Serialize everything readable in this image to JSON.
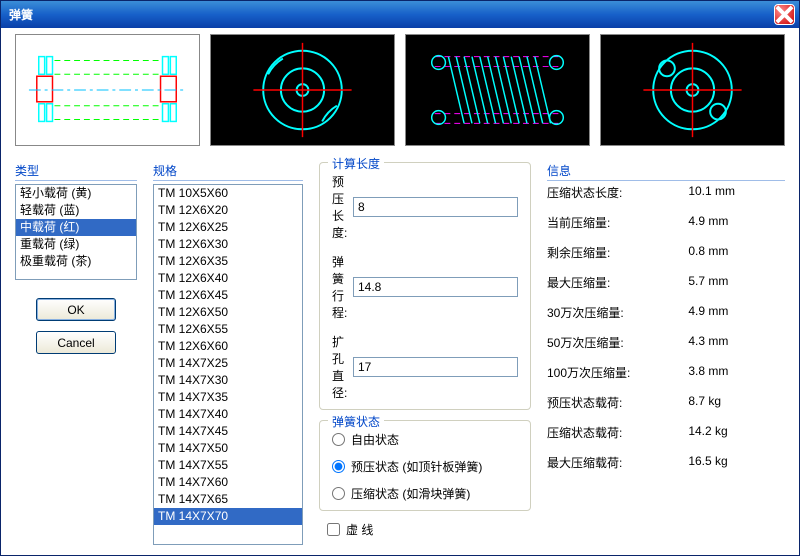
{
  "title": "弹簧",
  "previews": {
    "selected_index": 0,
    "colors": {
      "cyan": "#00ffff",
      "red": "#ff0000",
      "green_dash": "#00ff00",
      "magenta": "#ff00ff",
      "white": "#ffffff"
    }
  },
  "type_group": {
    "label": "类型",
    "items": [
      "轻小载荷 (黄)",
      "轻载荷 (蓝)",
      "中载荷 (红)",
      "重载荷 (绿)",
      "极重载荷 (茶)"
    ],
    "selected_index": 2
  },
  "spec_group": {
    "label": "规格",
    "items": [
      "TM 10X5X60",
      "TM 12X6X20",
      "TM 12X6X25",
      "TM 12X6X30",
      "TM 12X6X35",
      "TM 12X6X40",
      "TM 12X6X45",
      "TM 12X6X50",
      "TM 12X6X55",
      "TM 12X6X60",
      "TM 14X7X25",
      "TM 14X7X30",
      "TM 14X7X35",
      "TM 14X7X40",
      "TM 14X7X45",
      "TM 14X7X50",
      "TM 14X7X55",
      "TM 14X7X60",
      "TM 14X7X65",
      "TM 14X7X70"
    ],
    "selected_index": 19
  },
  "calc_group": {
    "label": "计算长度",
    "fields": [
      {
        "label": "预压长度:",
        "value": "8"
      },
      {
        "label": "弹簧行程:",
        "value": "14.8"
      },
      {
        "label": "扩孔直径:",
        "value": "17"
      }
    ]
  },
  "state_group": {
    "label": "弹簧状态",
    "radios": [
      {
        "label": "自由状态",
        "checked": false
      },
      {
        "label": "预压状态 (如顶针板弹簧)",
        "checked": true
      },
      {
        "label": "压缩状态 (如滑块弹簧)",
        "checked": false
      }
    ],
    "dashed": {
      "label": "虚 线",
      "checked": false
    }
  },
  "info_group": {
    "label": "信息",
    "rows": [
      {
        "label": "压缩状态长度:",
        "value": "10.1 mm"
      },
      {
        "label": "当前压缩量:",
        "value": "4.9 mm"
      },
      {
        "label": "剩余压缩量:",
        "value": "0.8 mm"
      },
      {
        "label": "最大压缩量:",
        "value": "5.7 mm"
      },
      {
        "label": "30万次压缩量:",
        "value": "4.9 mm"
      },
      {
        "label": "50万次压缩量:",
        "value": "4.3 mm"
      },
      {
        "label": "100万次压缩量:",
        "value": "3.8 mm"
      },
      {
        "label": "预压状态载荷:",
        "value": "8.7 kg"
      },
      {
        "label": "压缩状态载荷:",
        "value": "14.2 kg"
      },
      {
        "label": "最大压缩载荷:",
        "value": "16.5 kg"
      }
    ]
  },
  "buttons": {
    "ok": "OK",
    "cancel": "Cancel"
  }
}
